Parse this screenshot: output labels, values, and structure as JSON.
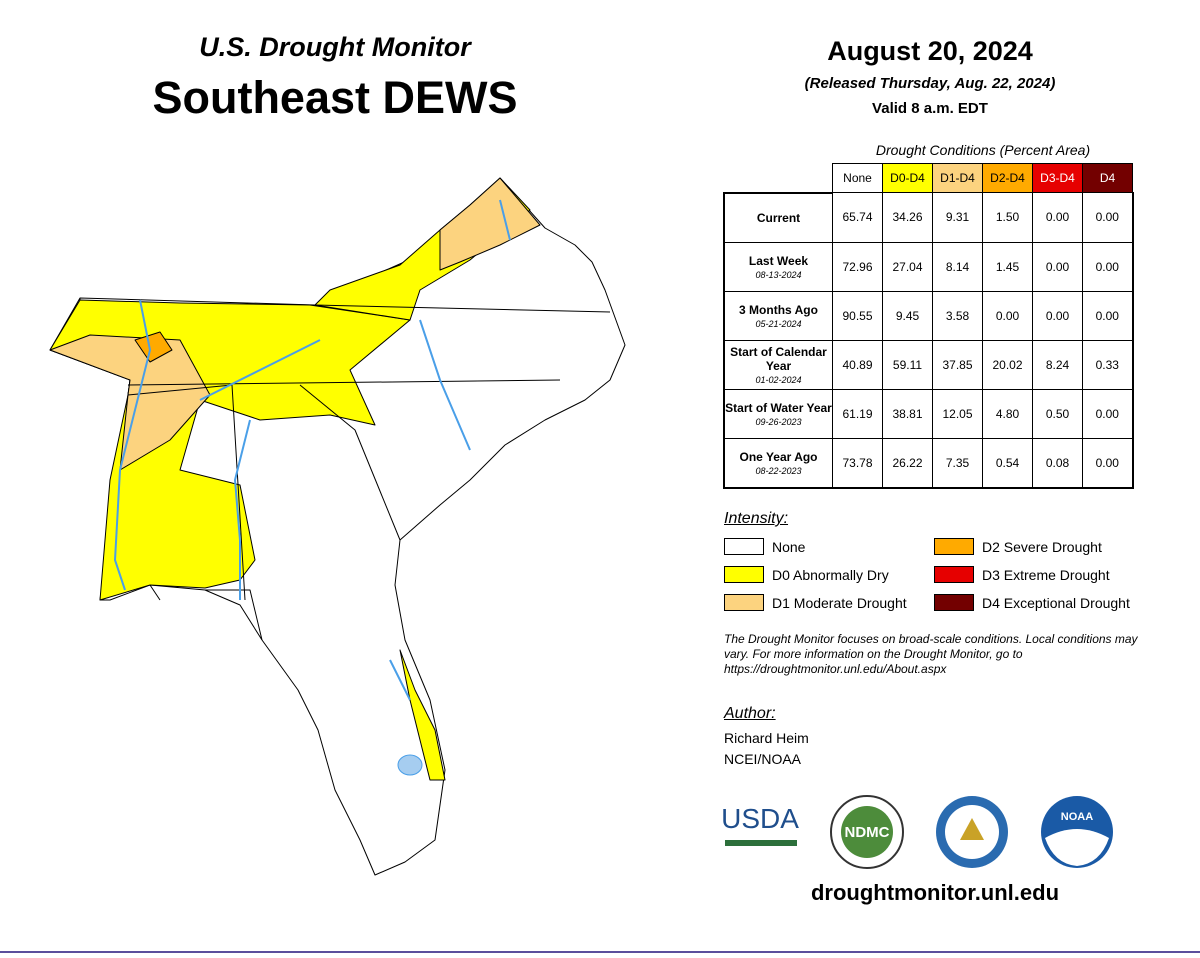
{
  "header": {
    "subtitle": "U.S. Drought Monitor",
    "title": "Southeast DEWS"
  },
  "date": {
    "title": "August 20, 2024",
    "released": "(Released Thursday, Aug. 22, 2024)",
    "valid": "Valid 8 a.m. EDT"
  },
  "table": {
    "caption": "Drought Conditions (Percent Area)",
    "columns": [
      {
        "label": "None",
        "color": "#ffffff",
        "text_color": "#000000"
      },
      {
        "label": "D0-D4",
        "color": "#ffff00",
        "text_color": "#000000"
      },
      {
        "label": "D1-D4",
        "color": "#fcd37f",
        "text_color": "#000000"
      },
      {
        "label": "D2-D4",
        "color": "#ffaa00",
        "text_color": "#000000"
      },
      {
        "label": "D3-D4",
        "color": "#e60000",
        "text_color": "#ffffff"
      },
      {
        "label": "D4",
        "color": "#730000",
        "text_color": "#ffffff"
      }
    ],
    "rows": [
      {
        "label": "Current",
        "values": [
          "65.74",
          "34.26",
          "9.31",
          "1.50",
          "0.00",
          "0.00"
        ]
      },
      {
        "label": "Last Week",
        "date": "08-13-2024",
        "values": [
          "72.96",
          "27.04",
          "8.14",
          "1.45",
          "0.00",
          "0.00"
        ]
      },
      {
        "label": "3 Months Ago",
        "date": "05-21-2024",
        "values": [
          "90.55",
          "9.45",
          "3.58",
          "0.00",
          "0.00",
          "0.00"
        ]
      },
      {
        "label": "Start of Calendar Year",
        "date": "01-02-2024",
        "values": [
          "40.89",
          "59.11",
          "37.85",
          "20.02",
          "8.24",
          "0.33"
        ]
      },
      {
        "label": "Start of Water Year",
        "date": "09-26-2023",
        "values": [
          "61.19",
          "38.81",
          "12.05",
          "4.80",
          "0.50",
          "0.00"
        ]
      },
      {
        "label": "One Year Ago",
        "date": "08-22-2023",
        "values": [
          "73.78",
          "26.22",
          "7.35",
          "0.54",
          "0.08",
          "0.00"
        ]
      }
    ]
  },
  "legend": {
    "title": "Intensity:",
    "items": [
      {
        "label": "None",
        "color": "#ffffff"
      },
      {
        "label": "D0 Abnormally Dry",
        "color": "#ffff00"
      },
      {
        "label": "D1 Moderate Drought",
        "color": "#fcd37f"
      },
      {
        "label": "D2 Severe Drought",
        "color": "#ffaa00"
      },
      {
        "label": "D3 Extreme Drought",
        "color": "#e60000"
      },
      {
        "label": "D4 Exceptional Drought",
        "color": "#730000"
      }
    ]
  },
  "note": "The Drought Monitor focuses on broad-scale conditions. Local conditions may vary. For more information on the Drought Monitor, go to https://droughtmonitor.unl.edu/About.aspx",
  "author": {
    "title": "Author:",
    "lines": [
      "Richard Heim",
      "NCEI/NOAA"
    ]
  },
  "logos": [
    "USDA",
    "NDMC",
    "NOAA"
  ],
  "url": "droughtmonitor.unl.edu"
}
